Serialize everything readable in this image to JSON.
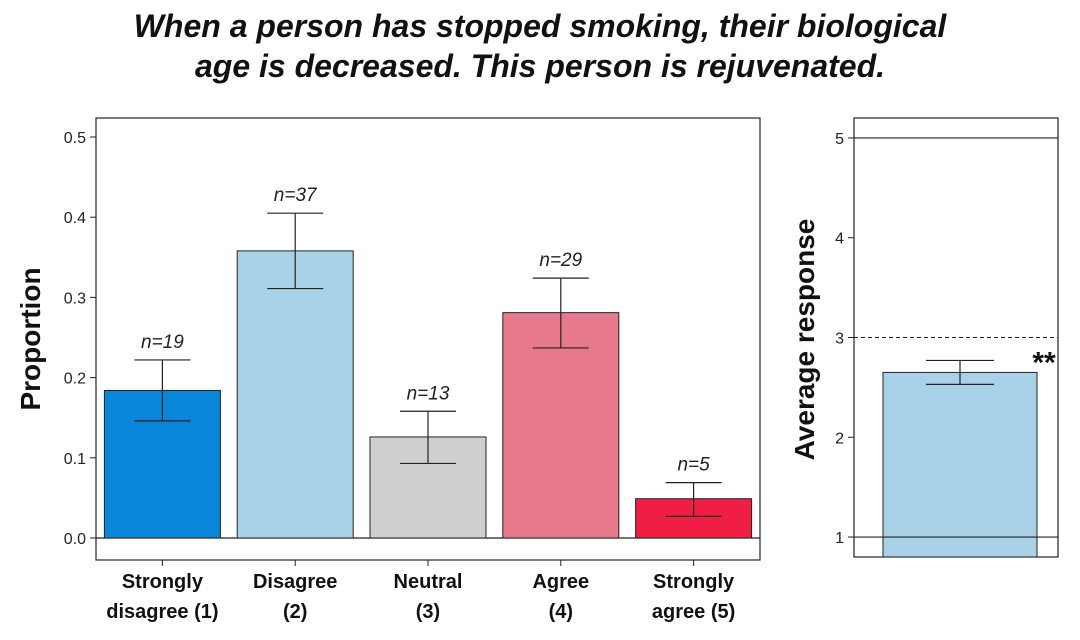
{
  "title_line1": "When a person has stopped smoking, their biological",
  "title_line2": "age is decreased. This person is rejuvenated.",
  "chart_data": [
    {
      "type": "bar",
      "ylabel": "Proportion",
      "ylim": [
        0,
        0.5
      ],
      "yticks": [
        "0.0",
        "0.1",
        "0.2",
        "0.3",
        "0.4",
        "0.5"
      ],
      "categories": [
        [
          "Strongly",
          "disagree (1)"
        ],
        [
          "Disagree",
          "(2)"
        ],
        [
          "Neutral",
          "(3)"
        ],
        [
          "Agree",
          "(4)"
        ],
        [
          "Strongly",
          "agree (5)"
        ]
      ],
      "values": [
        0.184,
        0.358,
        0.126,
        0.281,
        0.049
      ],
      "error_low": [
        0.146,
        0.311,
        0.093,
        0.237,
        0.027
      ],
      "error_high": [
        0.222,
        0.405,
        0.158,
        0.324,
        0.069
      ],
      "n_labels": [
        "n=19",
        "n=37",
        "n=13",
        "n=29",
        "n=5"
      ],
      "colors": [
        "#0a86d8",
        "#a9d1e7",
        "#cfcfcf",
        "#e67a8c",
        "#ee1e44"
      ],
      "grid": false
    },
    {
      "type": "bar",
      "ylabel": "Average response",
      "ylim": [
        0.8,
        5.2
      ],
      "yticks": [
        "1",
        "2",
        "3",
        "4",
        "5"
      ],
      "values": [
        2.65
      ],
      "error_low": [
        2.53
      ],
      "error_high": [
        2.77
      ],
      "reference_lines": [
        1,
        5
      ],
      "dashed_line": 3,
      "significance": "**",
      "colors": [
        "#a9d1e7"
      ],
      "grid": false
    }
  ]
}
